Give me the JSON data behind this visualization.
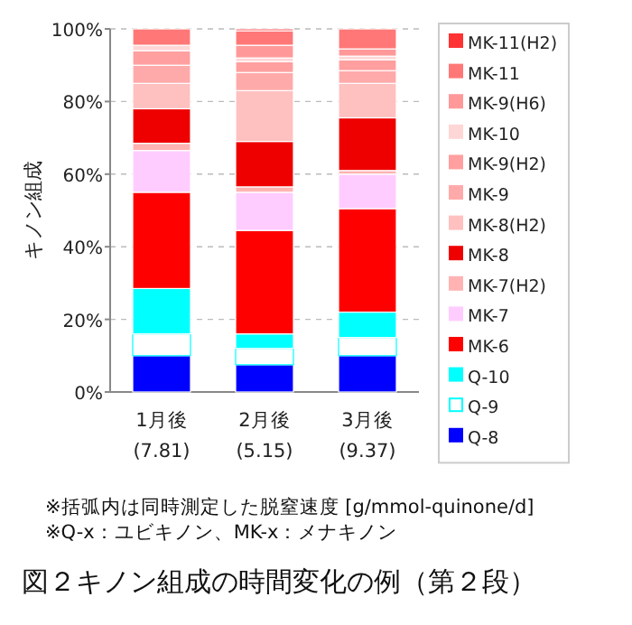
{
  "chart_data": {
    "type": "bar",
    "stacked": true,
    "title": "図２キノン組成の時間変化の例（第２段）",
    "ylabel": "キノン組成",
    "categories": [
      "1月後\n(7.81)",
      "2月後\n(5.15)",
      "3月後\n(9.37)"
    ],
    "ylim": [
      0,
      100
    ],
    "yticks": [
      {
        "value": 0,
        "label": "0%"
      },
      {
        "value": 20,
        "label": "20%"
      },
      {
        "value": 40,
        "label": "40%"
      },
      {
        "value": 60,
        "label": "60%"
      },
      {
        "value": 80,
        "label": "80%"
      },
      {
        "value": 100,
        "label": "100%"
      }
    ],
    "grid": "y",
    "legend": "right",
    "annotations": [
      "※括弧内は同時測定した脱窒速度 [g/mmol-quinone/d]",
      "※Q-x：ユビキノン、MK-x：メナキノン"
    ],
    "series": [
      {
        "name": "Q-8",
        "color": "#0000ff",
        "values": [
          10,
          7.5,
          10
        ]
      },
      {
        "name": "Q-9",
        "color": "#ffffff",
        "values": [
          6,
          4.5,
          5
        ]
      },
      {
        "name": "Q-10",
        "color": "#00ffff",
        "values": [
          12.5,
          4,
          7
        ]
      },
      {
        "name": "MK-6",
        "color": "#ff0000",
        "values": [
          26.5,
          28.5,
          28.5
        ]
      },
      {
        "name": "MK-7",
        "color": "#ffccff",
        "values": [
          11.5,
          10.5,
          9.5
        ]
      },
      {
        "name": "MK-7(H2)",
        "color": "#ffb3b3",
        "values": [
          2,
          1.5,
          1
        ]
      },
      {
        "name": "MK-8",
        "color": "#ee0000",
        "values": [
          9.5,
          12.5,
          14.5
        ]
      },
      {
        "name": "MK-8(H2)",
        "color": "#ffc0c0",
        "values": [
          7,
          14,
          9.5
        ]
      },
      {
        "name": "MK-9",
        "color": "#ffaaaa",
        "values": [
          5,
          5,
          3.5
        ]
      },
      {
        "name": "MK-9(H2)",
        "color": "#ff9f9f",
        "values": [
          4,
          3,
          3
        ]
      },
      {
        "name": "MK-10",
        "color": "#ffd6d6",
        "values": [
          1.5,
          1,
          1
        ]
      },
      {
        "name": "MK-9(H6)",
        "color": "#ff9999",
        "values": [
          0,
          3.5,
          2
        ]
      },
      {
        "name": "MK-11",
        "color": "#ff7777",
        "values": [
          4.5,
          4,
          5.5
        ]
      },
      {
        "name": "MK-11(H2)",
        "color": "#ff3333",
        "values": [
          0,
          0.5,
          0
        ]
      }
    ]
  }
}
